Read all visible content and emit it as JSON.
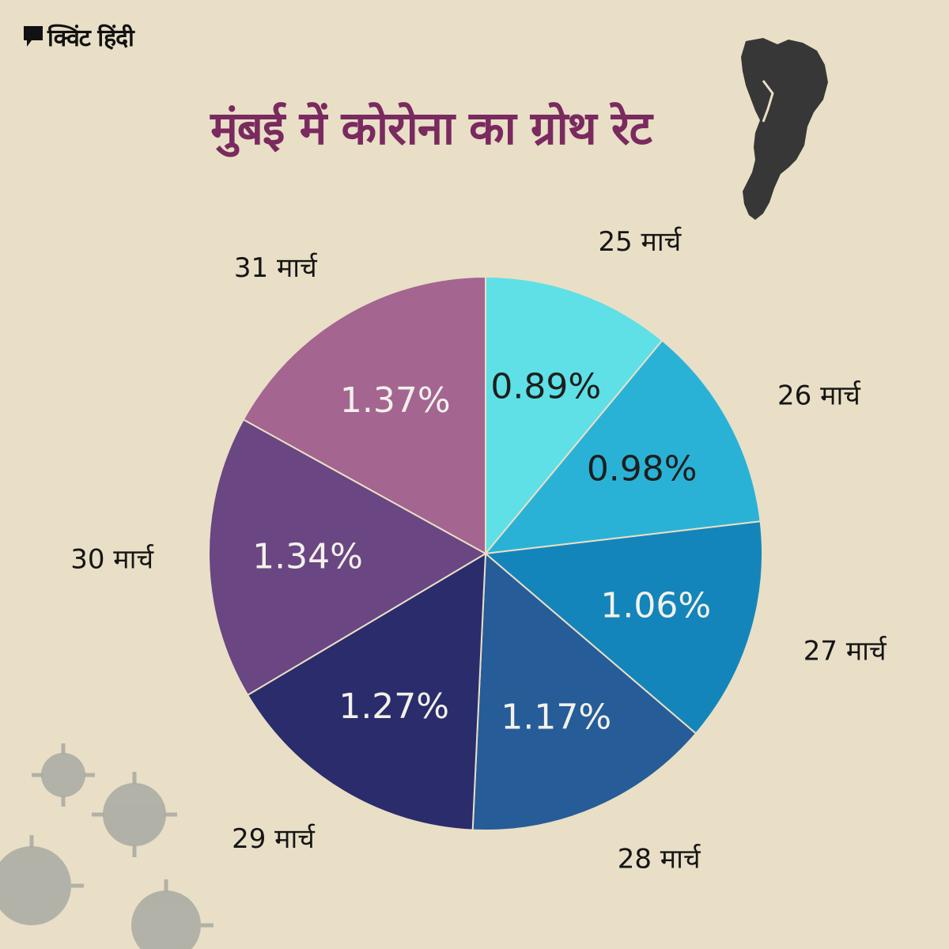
{
  "brand": {
    "name": "क्विंट हिंदी"
  },
  "title": "मुंबई में कोरोना का ग्रोथ रेट",
  "colors": {
    "background": "#e8dfc6",
    "title": "#7a2a5f",
    "slices": [
      "#5ee0e6",
      "#2ab2d6",
      "#1485ba",
      "#265c98",
      "#2a2c6c",
      "#6a4682",
      "#a46591"
    ]
  },
  "icons": {
    "brand": "speech-bubble-logo-icon",
    "map": "mumbai-map-icon",
    "decor": "coronavirus-icon"
  },
  "chart_data": {
    "type": "pie",
    "categories": [
      "25 मार्च",
      "26 मार्च",
      "27 मार्च",
      "28 मार्च",
      "29 मार्च",
      "30 मार्च",
      "31 मार्च"
    ],
    "values": [
      0.89,
      0.98,
      1.06,
      1.17,
      1.27,
      1.34,
      1.37
    ],
    "value_labels": [
      "0.89%",
      "0.98%",
      "1.06%",
      "1.17%",
      "1.27%",
      "1.34%",
      "1.37%"
    ],
    "label_colors": [
      "#1e1e1e",
      "#1e1e1e",
      "#f3f1ea",
      "#f3f1ea",
      "#f3f1ea",
      "#f3f1ea",
      "#f3f1ea"
    ],
    "title": "मुंबई में कोरोना का ग्रोथ रेट"
  }
}
